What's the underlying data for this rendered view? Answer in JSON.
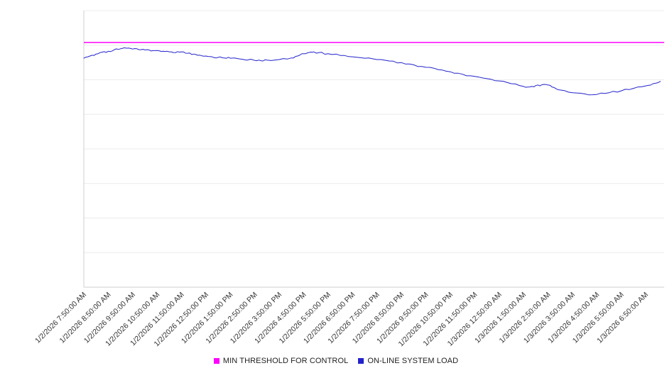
{
  "chart_data": {
    "type": "line",
    "title": "",
    "xlabel": "",
    "ylabel": "",
    "ylim": [
      0,
      100
    ],
    "y_tick_labels": [],
    "grid": "horizontal",
    "legend_position": "bottom-center",
    "value_scale_note": "y-axis shows no numeric tick labels; series values estimated as percent of plot height",
    "x_tick_labels": [
      "1/2/2026 7:50:00 AM",
      "1/2/2026 8:50:00 AM",
      "1/2/2026 9:50:00 AM",
      "1/2/2026 10:50:00 AM",
      "1/2/2026 11:50:00 AM",
      "1/2/2026 12:50:00 PM",
      "1/2/2026 1:50:00 PM",
      "1/2/2026 2:50:00 PM",
      "1/2/2026 3:50:00 PM",
      "1/2/2026 4:50:00 PM",
      "1/2/2026 5:50:00 PM",
      "1/2/2026 6:50:00 PM",
      "1/2/2026 7:50:00 PM",
      "1/2/2026 8:50:00 PM",
      "1/2/2026 9:50:00 PM",
      "1/2/2026 10:50:00 PM",
      "1/2/2026 11:50:00 PM",
      "1/3/2026 12:50:00 AM",
      "1/3/2026 1:50:00 AM",
      "1/3/2026 2:50:00 AM",
      "1/3/2026 3:50:00 AM",
      "1/3/2026 4:50:00 AM",
      "1/3/2026 5:50:00 AM",
      "1/3/2026 6:50:00 AM"
    ],
    "series": [
      {
        "name": "MIN THRESHOLD FOR CONTROL",
        "color": "#FF00FF",
        "style": "horizontal-threshold",
        "value": 88.5
      },
      {
        "name": "ON-LINE SYSTEM LOAD",
        "color": "#2222CC",
        "style": "line",
        "x_hours": [
          0,
          0.25,
          0.5,
          0.75,
          1,
          1.25,
          1.5,
          1.75,
          2,
          2.25,
          2.5,
          2.75,
          3,
          3.25,
          3.5,
          3.75,
          4,
          4.25,
          4.5,
          4.75,
          5,
          5.25,
          5.5,
          5.75,
          6,
          6.5,
          7,
          7.25,
          7.5,
          8,
          8.5,
          8.75,
          9,
          9.25,
          9.4,
          9.6,
          10,
          10.5,
          11,
          11.5,
          12,
          12.5,
          13,
          13.5,
          14,
          14.5,
          15,
          15.5,
          16,
          16.5,
          17,
          17.5,
          18,
          18.25,
          18.5,
          18.75,
          19,
          19.25,
          19.5,
          20,
          20.5,
          21,
          21.5,
          22,
          22.5,
          23,
          23.3,
          23.6
        ],
        "values": [
          82.8,
          83.6,
          84.3,
          85.0,
          85.3,
          85.9,
          86.2,
          86.4,
          86.1,
          85.9,
          85.8,
          85.4,
          85.6,
          85.3,
          85.1,
          84.8,
          85.1,
          84.6,
          84.3,
          83.9,
          83.6,
          83.3,
          83.1,
          82.9,
          82.8,
          82.4,
          82.0,
          81.9,
          82.1,
          82.3,
          82.9,
          83.6,
          84.4,
          84.9,
          85.1,
          84.8,
          84.4,
          83.8,
          83.3,
          82.8,
          82.3,
          81.8,
          81.2,
          80.4,
          79.5,
          78.7,
          77.9,
          77.0,
          76.2,
          75.4,
          74.6,
          73.6,
          72.6,
          72.4,
          72.9,
          73.2,
          73.1,
          72.2,
          71.3,
          70.3,
          69.9,
          69.7,
          70.3,
          71.0,
          71.9,
          72.8,
          73.6,
          74.4
        ]
      }
    ]
  }
}
